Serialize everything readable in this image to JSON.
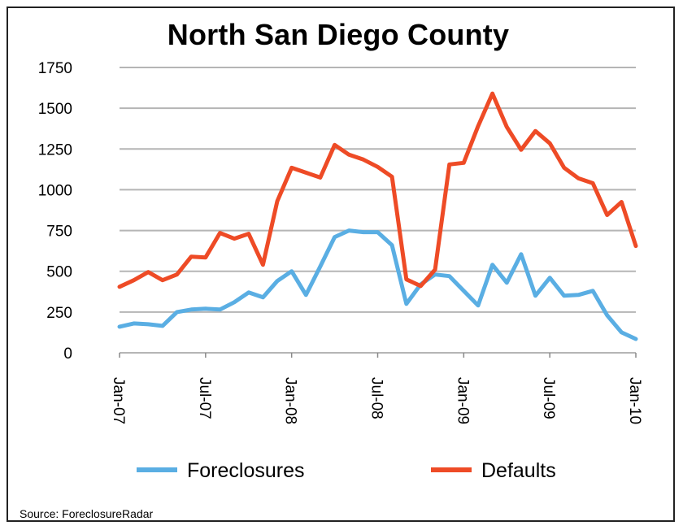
{
  "chart_data": {
    "type": "line",
    "title": "North San Diego County",
    "source": "Source: ForeclosureRadar",
    "xlabel": "",
    "ylabel": "",
    "ylim": [
      0,
      1750
    ],
    "yticks": [
      0,
      250,
      500,
      750,
      1000,
      1250,
      1500,
      1750
    ],
    "grid": true,
    "legend_position": "bottom",
    "x": [
      "Jan-07",
      "Feb-07",
      "Mar-07",
      "Apr-07",
      "May-07",
      "Jun-07",
      "Jul-07",
      "Aug-07",
      "Sep-07",
      "Oct-07",
      "Nov-07",
      "Dec-07",
      "Jan-08",
      "Feb-08",
      "Mar-08",
      "Apr-08",
      "May-08",
      "Jun-08",
      "Jul-08",
      "Aug-08",
      "Sep-08",
      "Oct-08",
      "Nov-08",
      "Dec-08",
      "Jan-09",
      "Feb-09",
      "Mar-09",
      "Apr-09",
      "May-09",
      "Jun-09",
      "Jul-09",
      "Aug-09",
      "Sep-09",
      "Oct-09",
      "Nov-09",
      "Dec-09",
      "Jan-10"
    ],
    "xtick_labels": [
      "Jan-07",
      "Jul-07",
      "Jan-08",
      "Jul-08",
      "Jan-09",
      "Jul-09",
      "Jan-10"
    ],
    "xtick_index": [
      0,
      6,
      12,
      18,
      24,
      30,
      36
    ],
    "series": [
      {
        "name": "Foreclosures",
        "color": "#5aaee3",
        "values": [
          160,
          180,
          175,
          165,
          250,
          265,
          270,
          265,
          310,
          370,
          340,
          440,
          500,
          355,
          530,
          710,
          750,
          740,
          740,
          660,
          300,
          420,
          480,
          470,
          380,
          290,
          540,
          430,
          605,
          350,
          460,
          350,
          355,
          380,
          230,
          125,
          85
        ]
      },
      {
        "name": "Defaults",
        "color": "#ee4b26",
        "values": [
          405,
          445,
          495,
          445,
          480,
          590,
          585,
          735,
          700,
          730,
          540,
          930,
          1135,
          1105,
          1075,
          1275,
          1215,
          1185,
          1140,
          1080,
          450,
          410,
          510,
          1155,
          1165,
          1390,
          1590,
          1385,
          1245,
          1360,
          1285,
          1135,
          1070,
          1040,
          845,
          925,
          655
        ]
      }
    ]
  }
}
